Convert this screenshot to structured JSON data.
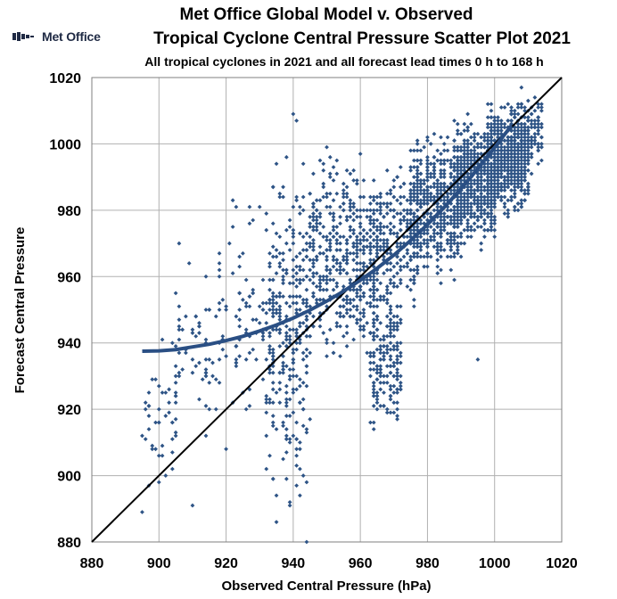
{
  "header": {
    "logo_text": "Met Office",
    "title_line1": "Met Office Global Model v. Observed",
    "title_line2": "Tropical Cyclone Central Pressure Scatter Plot 2021",
    "subtitle": "All tropical cyclones in 2021 and all forecast lead times 0 h to 168 h"
  },
  "colors": {
    "points": "#2e5486",
    "fit_curve": "#2a4f84",
    "reference_line": "#000000",
    "grid": "#b0b0b0"
  },
  "chart_data": {
    "type": "scatter",
    "title": "Tropical Cyclone Central Pressure Scatter Plot 2021",
    "xlabel": "Observed Central Pressure (hPa)",
    "ylabel": "Forecast Central Pressure",
    "xlim": [
      880,
      1020
    ],
    "ylim": [
      880,
      1020
    ],
    "xticks": [
      "880",
      "900",
      "920",
      "940",
      "960",
      "980",
      "1000",
      "1020"
    ],
    "yticks": [
      "880",
      "900",
      "920",
      "940",
      "960",
      "980",
      "1000",
      "1020"
    ],
    "grid": true,
    "legend": "none",
    "reference_line": {
      "name": "1:1 line",
      "x": [
        880,
        1020
      ],
      "y": [
        880,
        1020
      ]
    },
    "fit_curve": {
      "x": [
        895,
        900,
        905,
        910,
        915,
        920,
        925,
        930,
        935,
        940,
        945,
        950,
        955,
        960,
        965,
        970,
        975,
        980,
        985,
        990,
        995,
        1000,
        1005
      ],
      "y": [
        937.5,
        937.6,
        938.0,
        938.8,
        939.6,
        940.7,
        942.0,
        943.6,
        945.4,
        947.5,
        949.9,
        952.6,
        955.6,
        958.9,
        962.5,
        966.5,
        970.9,
        975.7,
        980.9,
        986.5,
        992.5,
        998.9,
        1005.5
      ]
    },
    "clusters": [
      {
        "x": [
          895,
          905
        ],
        "y": [
          890,
          947
        ],
        "n": 45
      },
      {
        "x": [
          905,
          918
        ],
        "y": [
          903,
          972
        ],
        "n": 60
      },
      {
        "x": [
          918,
          932
        ],
        "y": [
          908,
          988
        ],
        "n": 80
      },
      {
        "x": [
          932,
          945
        ],
        "y": [
          882,
          1008
        ],
        "n": 320
      },
      {
        "x": [
          945,
          955
        ],
        "y": [
          925,
          1005
        ],
        "n": 200
      },
      {
        "x": [
          955,
          965
        ],
        "y": [
          925,
          1002
        ],
        "n": 260
      },
      {
        "x": [
          963,
          972
        ],
        "y": [
          905,
          970
        ],
        "n": 200
      },
      {
        "x": [
          965,
          978
        ],
        "y": [
          945,
          1000
        ],
        "n": 220
      },
      {
        "x": [
          975,
          990
        ],
        "y": [
          955,
          1008
        ],
        "n": 520
      },
      {
        "x": [
          988,
          1000
        ],
        "y": [
          965,
          1012
        ],
        "n": 600
      },
      {
        "x": [
          998,
          1010
        ],
        "y": [
          975,
          1015
        ],
        "n": 620
      },
      {
        "x": [
          1005,
          1014
        ],
        "y": [
          990,
          1017
        ],
        "n": 150
      }
    ],
    "outliers": [
      {
        "x": 895,
        "y": 889
      },
      {
        "x": 910,
        "y": 891
      },
      {
        "x": 935,
        "y": 886
      },
      {
        "x": 944,
        "y": 880
      },
      {
        "x": 940,
        "y": 1009
      },
      {
        "x": 941,
        "y": 1007
      },
      {
        "x": 995,
        "y": 935
      },
      {
        "x": 1008,
        "y": 1017
      },
      {
        "x": 900,
        "y": 898
      },
      {
        "x": 920,
        "y": 908
      }
    ]
  }
}
